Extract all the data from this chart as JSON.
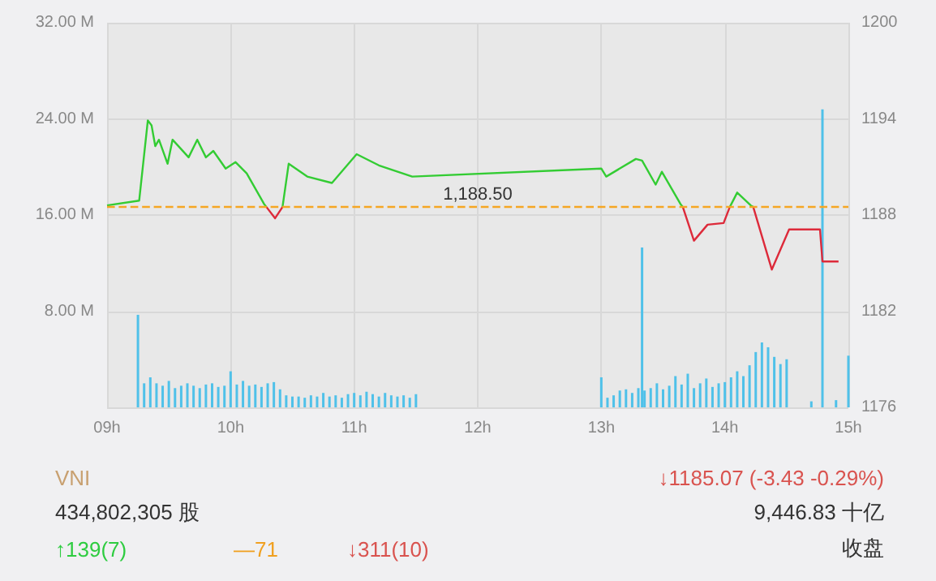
{
  "chart_data": {
    "type": "line",
    "xlim": [
      9,
      15
    ],
    "xticks": [
      {
        "value": 9,
        "label": "09h"
      },
      {
        "value": 10,
        "label": "10h"
      },
      {
        "value": 11,
        "label": "11h"
      },
      {
        "value": 12,
        "label": "12h"
      },
      {
        "value": 13,
        "label": "13h"
      },
      {
        "value": 14,
        "label": "14h"
      },
      {
        "value": 15,
        "label": "15h"
      }
    ],
    "ylim": [
      0,
      32
    ],
    "yticks": [
      {
        "value": 0,
        "label": null
      },
      {
        "value": 8,
        "label": "8.00 M"
      },
      {
        "value": 16,
        "label": "16.00 M"
      },
      {
        "value": 24,
        "label": "24.00 M"
      },
      {
        "value": 32,
        "label": "32.00 M"
      }
    ],
    "y2lim": [
      1176,
      1200
    ],
    "y2ticks": [
      1176,
      1182,
      1188,
      1194,
      1200
    ],
    "grid": true,
    "marker": "none",
    "series": [
      {
        "type": "bar",
        "axis": "y",
        "color": "#4fc1e9",
        "x": [
          9.25,
          9.3,
          9.35,
          9.4,
          9.45,
          9.5,
          9.55,
          9.6,
          9.65,
          9.7,
          9.75,
          9.8,
          9.85,
          9.9,
          9.95,
          10.0,
          10.05,
          10.1,
          10.15,
          10.2,
          10.25,
          10.3,
          10.35,
          10.4,
          10.45,
          10.5,
          10.55,
          10.6,
          10.65,
          10.7,
          10.75,
          10.8,
          10.85,
          10.9,
          10.95,
          11.0,
          11.05,
          11.1,
          11.15,
          11.2,
          11.25,
          11.3,
          11.35,
          11.4,
          11.45,
          11.5,
          13.0,
          13.05,
          13.1,
          13.15,
          13.2,
          13.25,
          13.3,
          13.33,
          13.35,
          13.4,
          13.45,
          13.5,
          13.55,
          13.6,
          13.65,
          13.7,
          13.75,
          13.8,
          13.85,
          13.9,
          13.95,
          14.0,
          14.05,
          14.1,
          14.15,
          14.2,
          14.25,
          14.3,
          14.35,
          14.4,
          14.45,
          14.5,
          14.7,
          14.79,
          14.9,
          15.0
        ],
        "values": [
          7.7,
          2.0,
          2.5,
          2.0,
          1.8,
          2.2,
          1.6,
          1.8,
          2.0,
          1.8,
          1.6,
          1.9,
          2.0,
          1.7,
          1.8,
          3.0,
          1.9,
          2.2,
          1.8,
          1.9,
          1.7,
          2.0,
          2.1,
          1.5,
          1.0,
          0.9,
          0.9,
          0.8,
          1.0,
          0.9,
          1.2,
          0.9,
          1.0,
          0.8,
          1.1,
          1.2,
          1.0,
          1.3,
          1.1,
          0.9,
          1.2,
          1.0,
          0.9,
          1.0,
          0.8,
          1.1,
          2.5,
          0.8,
          1.0,
          1.4,
          1.5,
          1.2,
          1.6,
          13.3,
          1.4,
          1.6,
          2.0,
          1.5,
          1.8,
          2.6,
          1.9,
          2.8,
          1.6,
          2.0,
          2.4,
          1.7,
          2.0,
          2.1,
          2.5,
          3.0,
          2.6,
          3.5,
          4.6,
          5.4,
          5.0,
          4.2,
          3.6,
          4.0,
          0.5,
          24.8,
          0.6,
          4.3
        ]
      },
      {
        "axis": "y2",
        "color": "#33cc33",
        "x": [
          9.0,
          9.26,
          9.33,
          9.36,
          9.39,
          9.42,
          9.49,
          9.53,
          9.66,
          9.73,
          9.8,
          9.86,
          9.96,
          10.04,
          10.13,
          10.27,
          10.29,
          10.31,
          10.42,
          10.47,
          10.62,
          10.82,
          11.02,
          11.2,
          11.47,
          13.0,
          13.04,
          13.28,
          13.33,
          13.44,
          13.49,
          13.64,
          13.66,
          13.68,
          14.04,
          14.1,
          14.21,
          14.23
        ],
        "values": [
          1188.6,
          1188.9,
          1193.9,
          1193.6,
          1192.3,
          1192.7,
          1191.2,
          1192.7,
          1191.6,
          1192.7,
          1191.6,
          1192.0,
          1190.9,
          1191.3,
          1190.6,
          1188.7,
          1188.5,
          null,
          1188.5,
          1191.2,
          1190.4,
          1190.0,
          1191.8,
          1191.1,
          1190.4,
          1190.9,
          1190.4,
          1191.5,
          1191.4,
          1189.9,
          1190.7,
          1188.7,
          1188.5,
          null,
          1188.5,
          1189.4,
          1188.6,
          1188.5
        ]
      },
      {
        "axis": "y2",
        "color": "#dd2a3a",
        "x": [
          10.29,
          10.36,
          10.42,
          10.44,
          13.66,
          13.75,
          13.86,
          13.99,
          14.04,
          14.1,
          14.23,
          14.38,
          14.52,
          14.77,
          14.79,
          14.92
        ],
        "values": [
          1188.5,
          1187.8,
          1188.5,
          null,
          1188.5,
          1186.4,
          1187.4,
          1187.5,
          1188.5,
          null,
          1188.5,
          1184.6,
          1187.1,
          1187.1,
          1185.1,
          1185.1
        ]
      }
    ],
    "ref_lines": [
      {
        "axis": "y2",
        "value": 1188.5,
        "label": "1,188.50",
        "color": "#f5a623",
        "line_style": "dashed"
      }
    ],
    "annotations": [
      "VNI",
      "↓1185.07 (-3.43 -0.29%)",
      "434,802,305 股",
      "9,446.83 十亿",
      "↑139(7)",
      "—71",
      "↓311(10)",
      "收盘"
    ]
  }
}
